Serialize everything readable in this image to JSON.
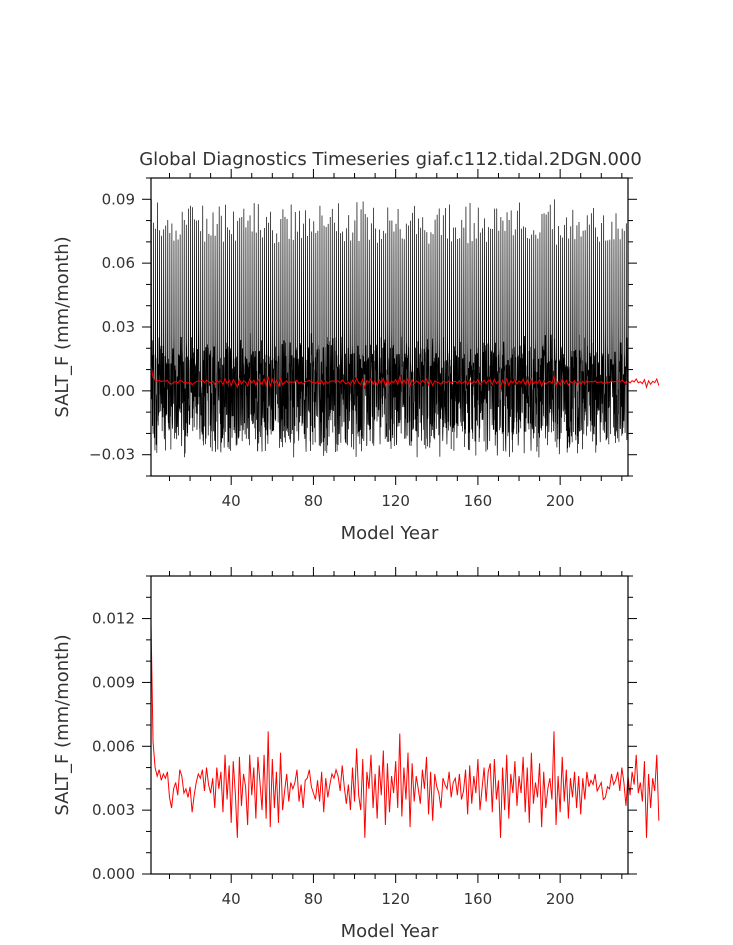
{
  "chart_data": [
    {
      "type": "line",
      "title": "Global Diagnostics Timeseries giaf.c112.tidal.2DGN.000",
      "xlabel": "Model Year",
      "ylabel": "SALT_F (mm/month)",
      "xlim": [
        1,
        233
      ],
      "ylim": [
        -0.04,
        0.1
      ],
      "xticks": [
        40,
        80,
        120,
        160,
        200
      ],
      "xtick_labels": [
        "40",
        "80",
        "120",
        "160",
        "200"
      ],
      "yticks": [
        -0.03,
        0.0,
        0.03,
        0.06,
        0.09
      ],
      "ytick_labels": [
        "−0.03",
        "0.00",
        "0.03",
        "0.06",
        "0.09"
      ],
      "grid": false,
      "monthly_upper_peak": 0.082,
      "monthly_band_upper": 0.015,
      "monthly_band_lower": -0.02,
      "monthly_min": -0.032,
      "series": [
        {
          "style": "monthly",
          "color": "#000000"
        },
        {
          "style": "annual_mean",
          "color": "#ff0000"
        }
      ]
    },
    {
      "type": "line",
      "title": "",
      "xlabel": "Model Year",
      "ylabel": "SALT_F (mm/month)",
      "xlim": [
        1,
        233
      ],
      "ylim": [
        0.0,
        0.014
      ],
      "xticks": [
        40,
        80,
        120,
        160,
        200
      ],
      "xtick_labels": [
        "40",
        "80",
        "120",
        "160",
        "200"
      ],
      "yticks": [
        0.0,
        0.003,
        0.006,
        0.009,
        0.012
      ],
      "ytick_labels": [
        "0.000",
        "0.003",
        "0.006",
        "0.009",
        "0.012"
      ],
      "grid": false,
      "series": [
        {
          "style": "annual_mean",
          "color": "#ff0000",
          "x_start": 1,
          "values": [
            0.0118,
            0.0062,
            0.005,
            0.0046,
            0.0049,
            0.0044,
            0.0047,
            0.0045,
            0.0048,
            0.0036,
            0.0031,
            0.004,
            0.0043,
            0.0037,
            0.0049,
            0.0046,
            0.0038,
            0.004,
            0.0036,
            0.0041,
            0.0029,
            0.0037,
            0.0043,
            0.0047,
            0.0045,
            0.0049,
            0.0039,
            0.005,
            0.0042,
            0.0038,
            0.0045,
            0.0031,
            0.005,
            0.004,
            0.0048,
            0.0029,
            0.0056,
            0.0035,
            0.0051,
            0.0024,
            0.0053,
            0.0038,
            0.0017,
            0.0055,
            0.0032,
            0.0047,
            0.0041,
            0.0023,
            0.0056,
            0.0037,
            0.005,
            0.0026,
            0.0055,
            0.0043,
            0.003,
            0.0056,
            0.0026,
            0.0067,
            0.0022,
            0.0054,
            0.0031,
            0.0048,
            0.0024,
            0.0057,
            0.003,
            0.0039,
            0.0047,
            0.0034,
            0.0043,
            0.004,
            0.0043,
            0.0049,
            0.0034,
            0.0042,
            0.0031,
            0.0044,
            0.0045,
            0.0049,
            0.0041,
            0.0038,
            0.0035,
            0.0044,
            0.0034,
            0.0048,
            0.0029,
            0.0045,
            0.0036,
            0.0042,
            0.0047,
            0.0045,
            0.0049,
            0.0046,
            0.0039,
            0.0051,
            0.0041,
            0.0033,
            0.0042,
            0.003,
            0.005,
            0.0034,
            0.0059,
            0.0037,
            0.003,
            0.0054,
            0.0017,
            0.0048,
            0.004,
            0.0056,
            0.0031,
            0.0047,
            0.0026,
            0.0051,
            0.0037,
            0.0058,
            0.0023,
            0.0052,
            0.0029,
            0.0046,
            0.0038,
            0.0053,
            0.0031,
            0.0066,
            0.0027,
            0.005,
            0.0035,
            0.0057,
            0.0022,
            0.0052,
            0.0034,
            0.0046,
            0.004,
            0.0033,
            0.0049,
            0.004,
            0.0055,
            0.0028,
            0.0048,
            0.0025,
            0.0047,
            0.0041,
            0.0038,
            0.0031,
            0.0045,
            0.0042,
            0.004,
            0.0048,
            0.0036,
            0.0043,
            0.0045,
            0.0037,
            0.0047,
            0.0035,
            0.0039,
            0.0049,
            0.0028,
            0.0051,
            0.0033,
            0.0046,
            0.0038,
            0.0054,
            0.003,
            0.004,
            0.005,
            0.0034,
            0.0048,
            0.0052,
            0.0029,
            0.0054,
            0.0035,
            0.0044,
            0.0017,
            0.005,
            0.003,
            0.0056,
            0.0026,
            0.0047,
            0.0038,
            0.0053,
            0.0032,
            0.0046,
            0.0038,
            0.0055,
            0.0029,
            0.005,
            0.0024,
            0.0057,
            0.0033,
            0.0043,
            0.0036,
            0.0052,
            0.0022,
            0.0048,
            0.0031,
            0.004,
            0.0045,
            0.0035,
            0.0067,
            0.0023,
            0.0046,
            0.0029,
            0.0055,
            0.0034,
            0.0049,
            0.0026,
            0.0045,
            0.0036,
            0.0048,
            0.0031,
            0.0046,
            0.0028,
            0.0045,
            0.0035,
            0.0048,
            0.0041,
            0.0044,
            0.0042,
            0.0047,
            0.0039,
            0.0041,
            0.0043,
            0.0035,
            0.0036,
            0.0041,
            0.004,
            0.0047,
            0.0042,
            0.0044,
            0.0048,
            0.0039,
            0.005,
            0.0043,
            0.0032,
            0.0046,
            0.0037,
            0.0048,
            0.0042,
            0.0056,
            0.0038,
            0.0043,
            0.0034,
            0.0053,
            0.0017,
            0.0047,
            0.0031,
            0.0045,
            0.0039,
            0.0056,
            0.0025
          ]
        }
      ]
    }
  ]
}
